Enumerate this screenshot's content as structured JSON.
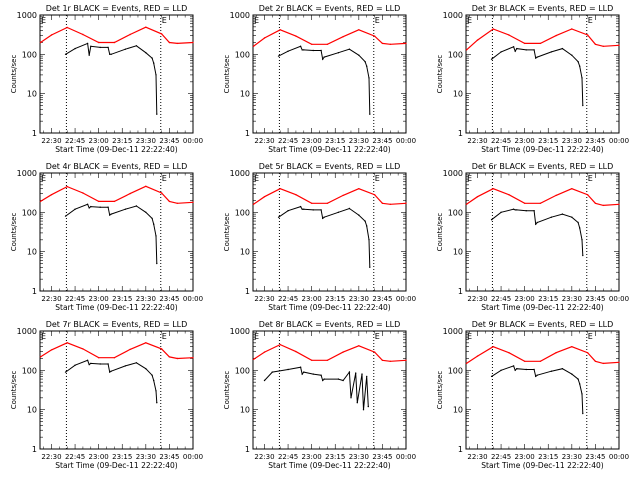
{
  "chart_data": [
    {
      "type": "line",
      "title": "Det 1r BLACK = Events, RED = LLD",
      "xlabel": "Start Time (09-Dec-11 22:22:40)",
      "ylabel": "Counts/sec",
      "x_tick_labels": [
        "22:30",
        "22:45",
        "23:00",
        "23:15",
        "23:30",
        "23:45",
        "00:00"
      ],
      "y_tick_labels": [
        "1",
        "10",
        "100",
        "1000"
      ],
      "ylim": [
        1,
        1000
      ],
      "y_scale": "log",
      "x_range_minutes_after_2230": [
        -7.3,
        90
      ],
      "vertical_dotted_lines_minutes_after_2230": [
        9.5,
        69.5
      ],
      "markers": [
        {
          "label": "E",
          "minute": -7.3
        },
        {
          "label": "E",
          "minute": 69.5
        }
      ],
      "colors": {
        "events": "#000000",
        "lld": "#ff0000"
      },
      "series": [
        {
          "name": "BLACK = Events",
          "color": "#000000",
          "x": [
            9,
            15,
            23,
            24,
            25,
            31,
            36,
            37,
            38,
            47,
            54,
            60,
            64,
            65,
            66.5,
            67
          ],
          "y": [
            100,
            140,
            190,
            95,
            160,
            150,
            150,
            100,
            100,
            135,
            165,
            110,
            80,
            60,
            30,
            3
          ]
        },
        {
          "name": "RED = LLD",
          "color": "#ff0000",
          "x": [
            -7,
            0,
            10,
            20,
            30,
            40,
            50,
            60,
            70,
            75,
            80,
            90
          ],
          "y": [
            200,
            310,
            480,
            320,
            200,
            200,
            320,
            490,
            330,
            200,
            190,
            200
          ]
        }
      ]
    },
    {
      "type": "line",
      "title": "Det 2r BLACK = Events, RED = LLD",
      "xlabel": "Start Time (09-Dec-11 22:22:40)",
      "ylabel": "Counts/sec",
      "x_tick_labels": [
        "22:30",
        "22:45",
        "23:00",
        "23:15",
        "23:30",
        "23:45",
        "00:00"
      ],
      "y_tick_labels": [
        "1",
        "10",
        "100",
        "1000"
      ],
      "ylim": [
        1,
        1000
      ],
      "y_scale": "log",
      "x_range_minutes_after_2230": [
        -7.3,
        90
      ],
      "vertical_dotted_lines_minutes_after_2230": [
        9.5,
        69.5
      ],
      "markers": [
        {
          "label": "E",
          "minute": -7.3
        },
        {
          "label": "E",
          "minute": 69.5
        }
      ],
      "colors": {
        "events": "#000000",
        "lld": "#ff0000"
      },
      "series": [
        {
          "name": "BLACK = Events",
          "color": "#000000",
          "x": [
            9,
            15,
            23,
            24,
            25,
            31,
            36,
            37,
            38,
            47,
            54,
            60,
            64,
            65,
            66.5,
            67
          ],
          "y": [
            90,
            120,
            160,
            130,
            130,
            125,
            125,
            75,
            85,
            110,
            135,
            95,
            65,
            50,
            25,
            3
          ]
        },
        {
          "name": "RED = LLD",
          "color": "#ff0000",
          "x": [
            -7,
            0,
            10,
            20,
            30,
            40,
            50,
            60,
            70,
            75,
            80,
            90
          ],
          "y": [
            160,
            260,
            420,
            290,
            180,
            180,
            280,
            420,
            290,
            190,
            180,
            190
          ]
        }
      ]
    },
    {
      "type": "line",
      "title": "Det 3r BLACK = Events, RED = LLD",
      "xlabel": "Start Time (09-Dec-11 22:22:40)",
      "ylabel": "Counts/sec",
      "x_tick_labels": [
        "22:30",
        "22:45",
        "23:00",
        "23:15",
        "23:30",
        "23:45",
        "00:00"
      ],
      "y_tick_labels": [
        "1",
        "10",
        "100",
        "1000"
      ],
      "ylim": [
        1,
        1000
      ],
      "y_scale": "log",
      "x_range_minutes_after_2230": [
        -7.3,
        90
      ],
      "vertical_dotted_lines_minutes_after_2230": [
        9.5,
        69.5
      ],
      "markers": [
        {
          "label": "E",
          "minute": -7.3
        },
        {
          "label": "E",
          "minute": 69.5
        }
      ],
      "colors": {
        "events": "#000000",
        "lld": "#ff0000"
      },
      "series": [
        {
          "name": "BLACK = Events",
          "color": "#000000",
          "x": [
            9,
            15,
            23,
            24,
            25,
            31,
            36,
            37,
            38,
            47,
            54,
            60,
            64,
            65,
            66.5,
            67
          ],
          "y": [
            75,
            115,
            155,
            120,
            140,
            130,
            130,
            80,
            85,
            115,
            140,
            95,
            65,
            50,
            25,
            5
          ]
        },
        {
          "name": "RED = LLD",
          "color": "#ff0000",
          "x": [
            -7,
            0,
            10,
            20,
            30,
            40,
            50,
            60,
            70,
            75,
            80,
            90
          ],
          "y": [
            130,
            230,
            440,
            310,
            190,
            190,
            300,
            440,
            310,
            180,
            160,
            170
          ]
        }
      ]
    },
    {
      "type": "line",
      "title": "Det 4r BLACK = Events, RED = LLD",
      "xlabel": "Start Time (09-Dec-11 22:22:40)",
      "ylabel": "Counts/sec",
      "x_tick_labels": [
        "22:30",
        "22:45",
        "23:00",
        "23:15",
        "23:30",
        "23:45",
        "00:00"
      ],
      "y_tick_labels": [
        "1",
        "10",
        "100",
        "1000"
      ],
      "ylim": [
        1,
        1000
      ],
      "y_scale": "log",
      "x_range_minutes_after_2230": [
        -7.3,
        90
      ],
      "vertical_dotted_lines_minutes_after_2230": [
        9.5,
        69.5
      ],
      "markers": [
        {
          "label": "E",
          "minute": -7.3
        },
        {
          "label": "E",
          "minute": 69.5
        }
      ],
      "colors": {
        "events": "#000000",
        "lld": "#ff0000"
      },
      "series": [
        {
          "name": "BLACK = Events",
          "color": "#000000",
          "x": [
            9,
            15,
            23,
            24,
            25,
            31,
            36,
            37,
            38,
            47,
            54,
            60,
            64,
            65,
            66.5,
            67
          ],
          "y": [
            80,
            120,
            160,
            130,
            140,
            135,
            135,
            85,
            90,
            120,
            145,
            100,
            70,
            50,
            25,
            5
          ]
        },
        {
          "name": "RED = LLD",
          "color": "#ff0000",
          "x": [
            -7,
            0,
            10,
            20,
            30,
            40,
            50,
            60,
            70,
            75,
            80,
            90
          ],
          "y": [
            190,
            280,
            450,
            310,
            190,
            190,
            300,
            460,
            310,
            190,
            170,
            180
          ]
        }
      ]
    },
    {
      "type": "line",
      "title": "Det 5r BLACK = Events, RED = LLD",
      "xlabel": "Start Time (09-Dec-11 22:22:40)",
      "ylabel": "Counts/sec",
      "x_tick_labels": [
        "22:30",
        "22:45",
        "23:00",
        "23:15",
        "23:30",
        "23:45",
        "00:00"
      ],
      "y_tick_labels": [
        "1",
        "10",
        "100",
        "1000"
      ],
      "ylim": [
        1,
        1000
      ],
      "y_scale": "log",
      "x_range_minutes_after_2230": [
        -7.3,
        90
      ],
      "vertical_dotted_lines_minutes_after_2230": [
        9.5,
        69.5
      ],
      "markers": [
        {
          "label": "E",
          "minute": -7.3
        },
        {
          "label": "E",
          "minute": 69.5
        }
      ],
      "colors": {
        "events": "#000000",
        "lld": "#ff0000"
      },
      "series": [
        {
          "name": "BLACK = Events",
          "color": "#000000",
          "x": [
            9,
            15,
            23,
            24,
            25,
            31,
            36,
            37,
            38,
            47,
            54,
            60,
            64,
            65,
            66.5,
            67
          ],
          "y": [
            75,
            110,
            140,
            120,
            120,
            115,
            115,
            70,
            75,
            100,
            125,
            85,
            60,
            45,
            20,
            4
          ]
        },
        {
          "name": "RED = LLD",
          "color": "#ff0000",
          "x": [
            -7,
            0,
            10,
            20,
            30,
            40,
            50,
            60,
            70,
            75,
            80,
            90
          ],
          "y": [
            160,
            250,
            400,
            280,
            170,
            170,
            270,
            400,
            280,
            170,
            160,
            170
          ]
        }
      ]
    },
    {
      "type": "line",
      "title": "Det 6r BLACK = Events, RED = LLD",
      "xlabel": "Start Time (09-Dec-11 22:22:40)",
      "ylabel": "Counts/sec",
      "x_tick_labels": [
        "22:30",
        "22:45",
        "23:00",
        "23:15",
        "23:30",
        "23:45",
        "00:00"
      ],
      "y_tick_labels": [
        "1",
        "10",
        "100",
        "1000"
      ],
      "ylim": [
        1,
        1000
      ],
      "y_scale": "log",
      "x_range_minutes_after_2230": [
        -7.3,
        90
      ],
      "vertical_dotted_lines_minutes_after_2230": [
        9.5,
        69.5
      ],
      "markers": [
        {
          "label": "E",
          "minute": -7.3
        },
        {
          "label": "E",
          "minute": 69.5
        }
      ],
      "colors": {
        "events": "#000000",
        "lld": "#ff0000"
      },
      "series": [
        {
          "name": "BLACK = Events",
          "color": "#000000",
          "x": [
            9,
            15,
            23,
            24,
            25,
            31,
            36,
            37,
            38,
            47,
            54,
            60,
            64,
            65,
            66.5,
            67
          ],
          "y": [
            65,
            100,
            120,
            115,
            115,
            110,
            110,
            50,
            55,
            75,
            90,
            75,
            55,
            40,
            20,
            8
          ]
        },
        {
          "name": "RED = LLD",
          "color": "#ff0000",
          "x": [
            -7,
            0,
            10,
            20,
            30,
            40,
            50,
            60,
            70,
            75,
            80,
            90
          ],
          "y": [
            160,
            250,
            400,
            280,
            170,
            170,
            270,
            400,
            280,
            170,
            150,
            160
          ]
        }
      ]
    },
    {
      "type": "line",
      "title": "Det 7r BLACK = Events, RED = LLD",
      "xlabel": "Start Time (09-Dec-11 22:22:40)",
      "ylabel": "Counts/sec",
      "x_tick_labels": [
        "22:30",
        "22:45",
        "23:00",
        "23:15",
        "23:30",
        "23:45",
        "00:00"
      ],
      "y_tick_labels": [
        "1",
        "10",
        "100",
        "1000"
      ],
      "ylim": [
        1,
        1000
      ],
      "y_scale": "log",
      "x_range_minutes_after_2230": [
        -7.3,
        90
      ],
      "vertical_dotted_lines_minutes_after_2230": [
        9.5,
        69.5
      ],
      "markers": [
        {
          "label": "E",
          "minute": -7.3
        },
        {
          "label": "E",
          "minute": 69.5
        }
      ],
      "colors": {
        "events": "#000000",
        "lld": "#ff0000"
      },
      "series": [
        {
          "name": "BLACK = Events",
          "color": "#000000",
          "x": [
            9,
            15,
            23,
            24,
            25,
            31,
            36,
            37,
            38,
            47,
            54,
            60,
            64,
            65,
            66.5,
            67
          ],
          "y": [
            90,
            135,
            180,
            140,
            150,
            145,
            145,
            90,
            95,
            130,
            155,
            110,
            75,
            55,
            30,
            15
          ]
        },
        {
          "name": "RED = LLD",
          "color": "#ff0000",
          "x": [
            -7,
            0,
            10,
            20,
            30,
            40,
            50,
            60,
            70,
            75,
            80,
            90
          ],
          "y": [
            220,
            330,
            500,
            350,
            210,
            210,
            340,
            500,
            350,
            220,
            200,
            210
          ]
        }
      ]
    },
    {
      "type": "line",
      "title": "Det 8r BLACK = Events, RED = LLD",
      "xlabel": "Start Time (09-Dec-11 22:22:40)",
      "ylabel": "Counts/sec",
      "x_tick_labels": [
        "22:30",
        "22:45",
        "23:00",
        "23:15",
        "23:30",
        "23:45",
        "00:00"
      ],
      "y_tick_labels": [
        "1",
        "10",
        "100",
        "1000"
      ],
      "ylim": [
        1,
        1000
      ],
      "y_scale": "log",
      "x_range_minutes_after_2230": [
        -7.3,
        90
      ],
      "vertical_dotted_lines_minutes_after_2230": [
        9.5,
        69.5
      ],
      "markers": [
        {
          "label": "E",
          "minute": -7.3
        },
        {
          "label": "E",
          "minute": 69.5
        }
      ],
      "colors": {
        "events": "#000000",
        "lld": "#ff0000"
      },
      "series": [
        {
          "name": "BLACK = Events",
          "color": "#000000",
          "x": [
            0,
            5,
            15,
            23,
            24,
            25,
            31,
            36,
            37,
            38,
            47,
            50,
            54,
            55,
            58,
            59,
            62,
            63,
            65,
            66
          ],
          "y": [
            55,
            90,
            105,
            120,
            80,
            90,
            80,
            75,
            55,
            60,
            60,
            55,
            90,
            20,
            85,
            15,
            80,
            10,
            70,
            12
          ]
        },
        {
          "name": "RED = LLD",
          "color": "#ff0000",
          "x": [
            -7,
            0,
            10,
            20,
            30,
            40,
            50,
            60,
            70,
            75,
            80,
            90
          ],
          "y": [
            190,
            290,
            450,
            300,
            180,
            180,
            290,
            420,
            290,
            180,
            170,
            180
          ]
        }
      ]
    },
    {
      "type": "line",
      "title": "Det 9r BLACK = Events, RED = LLD",
      "xlabel": "Start Time (09-Dec-11 22:22:40)",
      "ylabel": "Counts/sec",
      "x_tick_labels": [
        "22:30",
        "22:45",
        "23:00",
        "23:15",
        "23:30",
        "23:45",
        "00:00"
      ],
      "y_tick_labels": [
        "1",
        "10",
        "100",
        "1000"
      ],
      "ylim": [
        1,
        1000
      ],
      "y_scale": "log",
      "x_range_minutes_after_2230": [
        -7.3,
        90
      ],
      "vertical_dotted_lines_minutes_after_2230": [
        9.5,
        69.5
      ],
      "markers": [
        {
          "label": "E",
          "minute": -7.3
        },
        {
          "label": "E",
          "minute": 69.5
        }
      ],
      "colors": {
        "events": "#000000",
        "lld": "#ff0000"
      },
      "series": [
        {
          "name": "BLACK = Events",
          "color": "#000000",
          "x": [
            9,
            15,
            23,
            24,
            25,
            31,
            36,
            37,
            38,
            47,
            54,
            60,
            64,
            65,
            66.5,
            67
          ],
          "y": [
            70,
            100,
            130,
            100,
            110,
            105,
            105,
            70,
            75,
            95,
            110,
            80,
            60,
            45,
            25,
            8
          ]
        },
        {
          "name": "RED = LLD",
          "color": "#ff0000",
          "x": [
            -7,
            0,
            10,
            20,
            30,
            40,
            50,
            60,
            70,
            75,
            80,
            90
          ],
          "y": [
            150,
            230,
            400,
            280,
            170,
            170,
            280,
            400,
            280,
            170,
            150,
            160
          ]
        }
      ]
    }
  ]
}
